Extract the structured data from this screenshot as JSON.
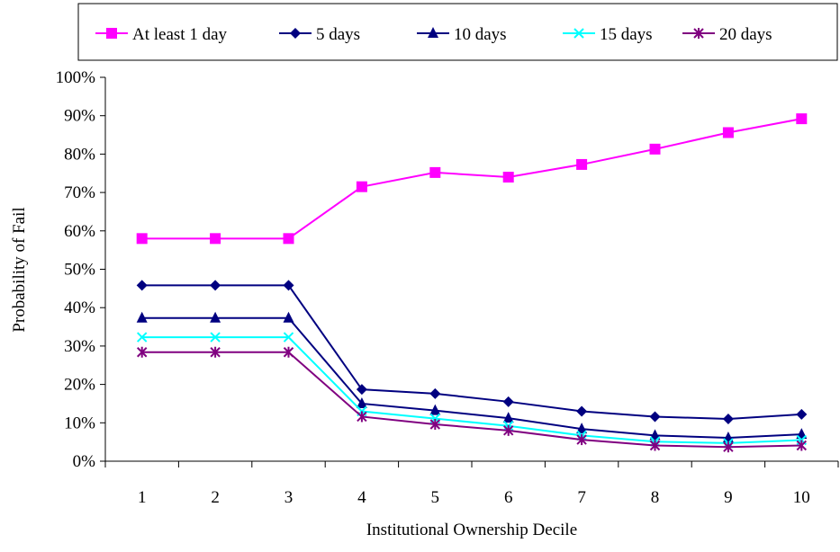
{
  "chart_data": {
    "type": "line",
    "xlabel": "Institutional Ownership Decile",
    "ylabel": "Probability of Fail",
    "categories": [
      "1",
      "2",
      "3",
      "4",
      "5",
      "6",
      "7",
      "8",
      "9",
      "10"
    ],
    "ylim": [
      0,
      100
    ],
    "y_ticks": [
      "0%",
      "10%",
      "20%",
      "30%",
      "40%",
      "50%",
      "60%",
      "70%",
      "80%",
      "90%",
      "100%"
    ],
    "grid": false,
    "legend_position": "top",
    "series": [
      {
        "name": "At least 1 day",
        "color": "#FF00FF",
        "marker": "square",
        "values": [
          58,
          58,
          58,
          71.5,
          75.2,
          74,
          77.3,
          81.3,
          85.6,
          89.2
        ]
      },
      {
        "name": "5 days",
        "color": "#000080",
        "marker": "diamond",
        "values": [
          45.8,
          45.8,
          45.8,
          18.7,
          17.6,
          15.5,
          13,
          11.6,
          11,
          12.2
        ]
      },
      {
        "name": "10 days",
        "color": "#000080",
        "marker": "triangle",
        "values": [
          37.3,
          37.3,
          37.3,
          15,
          13.2,
          11.2,
          8.4,
          6.7,
          6.1,
          7
        ]
      },
      {
        "name": "15 days",
        "color": "#00FFFF",
        "marker": "x",
        "values": [
          32.3,
          32.3,
          32.3,
          13,
          11.1,
          9.2,
          6.7,
          5.1,
          4.7,
          5.5
        ]
      },
      {
        "name": "20 days",
        "color": "#800080",
        "marker": "star",
        "values": [
          28.4,
          28.4,
          28.4,
          11.6,
          9.6,
          8,
          5.6,
          4.1,
          3.7,
          4.1
        ]
      }
    ]
  }
}
